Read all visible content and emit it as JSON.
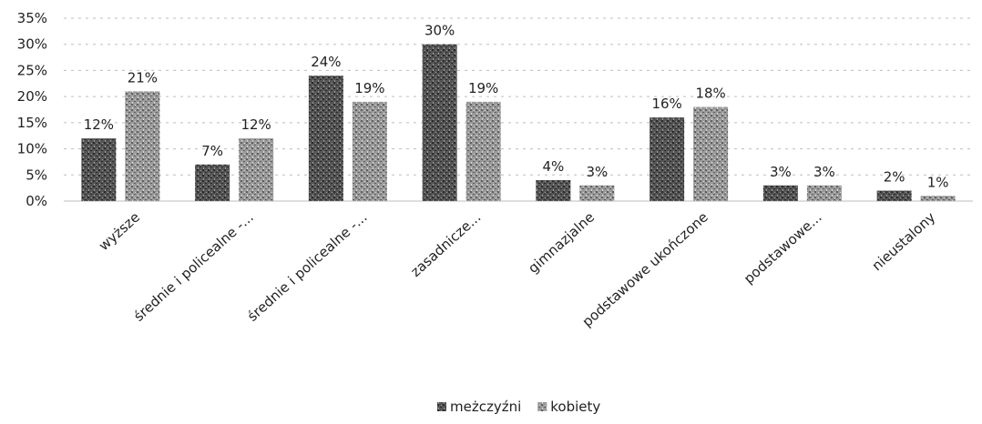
{
  "chart_data": {
    "type": "bar",
    "categories": [
      "wyższe",
      "średnie i policealne -...",
      "średnie i policealne -...",
      "zasadnicze...",
      "gimnazjalne",
      "podstawowe ukończone",
      "podstawowe...",
      "nieustalony"
    ],
    "series": [
      {
        "name": "meżczyźni",
        "values": [
          12,
          7,
          24,
          30,
          4,
          16,
          3,
          2
        ],
        "labels": [
          "12%",
          "7%",
          "24%",
          "30%",
          "4%",
          "16%",
          "3%",
          "2%"
        ]
      },
      {
        "name": "kobiety",
        "values": [
          21,
          12,
          19,
          19,
          3,
          18,
          3,
          1
        ],
        "labels": [
          "21%",
          "12%",
          "19%",
          "19%",
          "3%",
          "18%",
          "3%",
          "1%"
        ]
      }
    ],
    "ylim": [
      0,
      35
    ],
    "yticks": [
      "0%",
      "5%",
      "10%",
      "15%",
      "20%",
      "25%",
      "30%",
      "35%"
    ],
    "grid": true,
    "legend": "bottom",
    "colors": {
      "series0": "#555555",
      "series1": "#9a9a9a",
      "grid": "#bdbdbd",
      "text": "#222222"
    }
  }
}
